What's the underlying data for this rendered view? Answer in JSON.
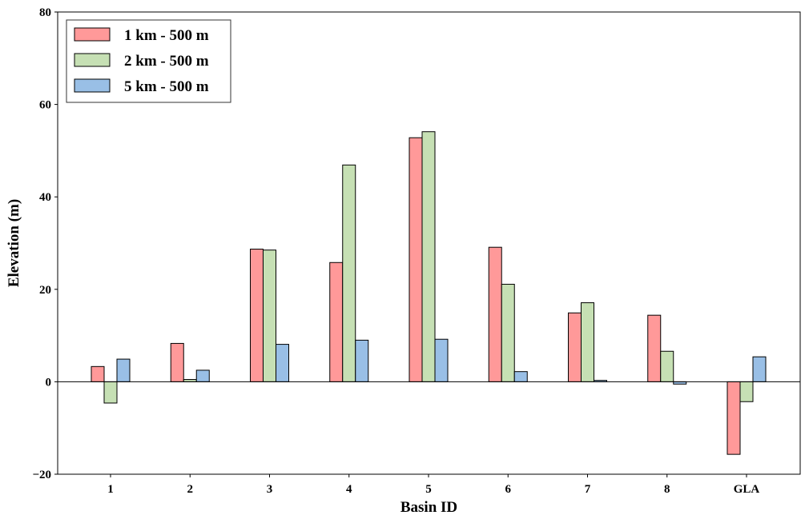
{
  "chart_data": {
    "type": "bar",
    "categories": [
      "1",
      "2",
      "3",
      "4",
      "5",
      "6",
      "7",
      "8",
      "GLA"
    ],
    "series": [
      {
        "name": "1 km - 500 m",
        "color": "#ff9999",
        "values": [
          3.3,
          8.3,
          28.7,
          25.8,
          52.8,
          29.1,
          14.9,
          14.4,
          -15.7
        ]
      },
      {
        "name": "2 km - 500 m",
        "color": "#c6e0b4",
        "values": [
          -4.6,
          0.5,
          28.5,
          46.9,
          54.1,
          21.1,
          17.1,
          6.6,
          -4.3
        ]
      },
      {
        "name": "5 km - 500 m",
        "color": "#99bfe6",
        "values": [
          4.9,
          2.5,
          8.1,
          9.0,
          9.2,
          2.2,
          0.3,
          -0.5,
          5.4
        ]
      }
    ],
    "xlabel": "Basin ID",
    "ylabel": "Elevation (m)",
    "ylim": [
      -20,
      80
    ],
    "yticks": [
      "−20",
      "0",
      "20",
      "40",
      "60",
      "80"
    ],
    "ytick_values": [
      -20,
      0,
      20,
      40,
      60,
      80
    ],
    "legend_position": "top-left",
    "grid": false,
    "zero_line": true
  }
}
